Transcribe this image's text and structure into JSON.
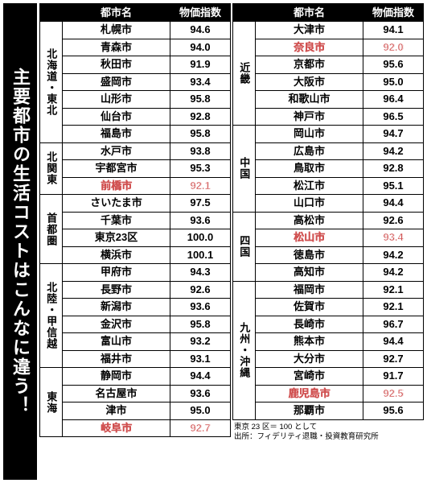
{
  "title": "主要都市の生活コストはこんなに違う！",
  "headers": {
    "city": "都市名",
    "index": "物価指数"
  },
  "left_groups": [
    {
      "region": "北海道・東北",
      "rows": [
        {
          "city": "札幌市",
          "val": "94.6"
        },
        {
          "city": "青森市",
          "val": "94.0"
        },
        {
          "city": "秋田市",
          "val": "91.9"
        },
        {
          "city": "盛岡市",
          "val": "93.4"
        },
        {
          "city": "山形市",
          "val": "95.8"
        },
        {
          "city": "仙台市",
          "val": "92.8"
        },
        {
          "city": "福島市",
          "val": "95.8"
        }
      ]
    },
    {
      "region": "北関東",
      "rows": [
        {
          "city": "水戸市",
          "val": "93.8"
        },
        {
          "city": "宇都宮市",
          "val": "95.3"
        },
        {
          "city": "前橋市",
          "val": "92.1",
          "hl": true
        }
      ]
    },
    {
      "region": "首都圏",
      "rows": [
        {
          "city": "さいたま市",
          "val": "97.5"
        },
        {
          "city": "千葉市",
          "val": "93.6"
        },
        {
          "city": "東京23区",
          "val": "100.0"
        },
        {
          "city": "横浜市",
          "val": "100.1"
        }
      ]
    },
    {
      "region": "北陸・甲信越",
      "rows": [
        {
          "city": "甲府市",
          "val": "94.3"
        },
        {
          "city": "長野市",
          "val": "92.6"
        },
        {
          "city": "新潟市",
          "val": "93.6"
        },
        {
          "city": "金沢市",
          "val": "95.8"
        },
        {
          "city": "富山市",
          "val": "93.2"
        },
        {
          "city": "福井市",
          "val": "93.1"
        }
      ]
    },
    {
      "region": "東海",
      "rows": [
        {
          "city": "静岡市",
          "val": "94.4"
        },
        {
          "city": "名古屋市",
          "val": "93.6"
        },
        {
          "city": "津市",
          "val": "95.0"
        },
        {
          "city": "岐阜市",
          "val": "92.7",
          "hl": true
        }
      ]
    }
  ],
  "right_groups": [
    {
      "region": "近畿",
      "rows": [
        {
          "city": "大津市",
          "val": "94.1"
        },
        {
          "city": "奈良市",
          "val": "92.0",
          "hl": true
        },
        {
          "city": "京都市",
          "val": "95.6"
        },
        {
          "city": "大阪市",
          "val": "95.0"
        },
        {
          "city": "和歌山市",
          "val": "96.4"
        },
        {
          "city": "神戸市",
          "val": "96.5"
        }
      ]
    },
    {
      "region": "中国",
      "rows": [
        {
          "city": "岡山市",
          "val": "94.7"
        },
        {
          "city": "広島市",
          "val": "94.2"
        },
        {
          "city": "鳥取市",
          "val": "92.8"
        },
        {
          "city": "松江市",
          "val": "95.1"
        },
        {
          "city": "山口市",
          "val": "94.4"
        }
      ]
    },
    {
      "region": "四国",
      "rows": [
        {
          "city": "高松市",
          "val": "92.6"
        },
        {
          "city": "松山市",
          "val": "93.4",
          "hl": true
        },
        {
          "city": "徳島市",
          "val": "94.2"
        },
        {
          "city": "高知市",
          "val": "94.2"
        }
      ]
    },
    {
      "region": "九州・沖縄",
      "rows": [
        {
          "city": "福岡市",
          "val": "92.1"
        },
        {
          "city": "佐賀市",
          "val": "92.1"
        },
        {
          "city": "長崎市",
          "val": "96.7"
        },
        {
          "city": "熊本市",
          "val": "94.4"
        },
        {
          "city": "大分市",
          "val": "92.7"
        },
        {
          "city": "宮崎市",
          "val": "91.7"
        },
        {
          "city": "鹿児島市",
          "val": "92.5",
          "hl": true
        },
        {
          "city": "那覇市",
          "val": "95.6"
        }
      ]
    }
  ],
  "footnote_l1": "東京 23 区＝ 100 として",
  "footnote_l2": "出所：フィデリティ退職・投資教育研究所"
}
